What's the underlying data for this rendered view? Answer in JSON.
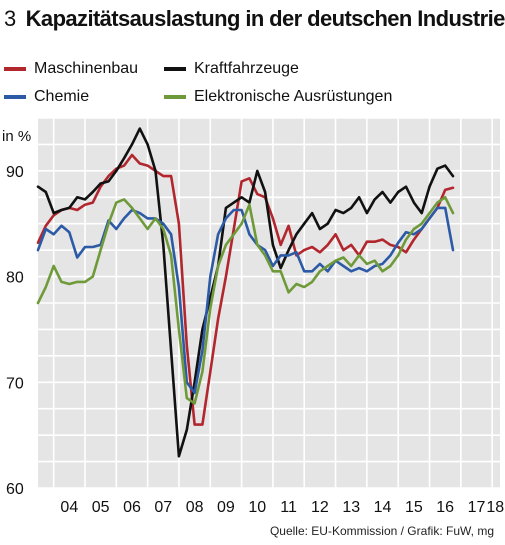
{
  "chart_data": {
    "type": "line",
    "title_number": "3",
    "title": "Kapazitätsauslastung in der deutschen Industrie",
    "ylabel": "in %",
    "ylim": [
      60,
      95
    ],
    "yticks": [
      60,
      70,
      80,
      90
    ],
    "xlim": [
      2003.5,
      2018.25
    ],
    "x_tick_labels": [
      "04",
      "05",
      "06",
      "07",
      "08",
      "09",
      "10",
      "11",
      "12",
      "13",
      "14",
      "15",
      "16",
      "17",
      "18"
    ],
    "grid": true,
    "legend_placement": "top",
    "source": "Quelle: EU-Kommission / Grafik: FuW, mg",
    "x_start_year": 2003.5,
    "x_step": 0.25,
    "series": [
      {
        "name": "Maschinenbau",
        "color": "#b2262e",
        "values": [
          83.2,
          84.8,
          85.8,
          86.3,
          86.5,
          86.3,
          86.8,
          87.0,
          88.5,
          89.5,
          90.2,
          90.5,
          91.5,
          90.7,
          90.5,
          90.0,
          89.5,
          89.5,
          85.0,
          73.5,
          66.0,
          66.0,
          71.0,
          76.0,
          80.0,
          84.5,
          89.0,
          89.3,
          87.8,
          87.5,
          85.5,
          83.0,
          84.8,
          82.0,
          82.5,
          82.8,
          82.3,
          83.0,
          84.0,
          82.5,
          83.0,
          82.0,
          83.3,
          83.3,
          83.5,
          83.0,
          82.8,
          82.3,
          83.5,
          84.5,
          85.5,
          86.5,
          88.2,
          88.4
        ]
      },
      {
        "name": "Kraftfahrzeuge",
        "color": "#111111",
        "values": [
          88.5,
          88.0,
          86.0,
          86.3,
          86.5,
          87.5,
          87.3,
          88.0,
          88.8,
          89.0,
          90.0,
          91.2,
          92.5,
          94.0,
          92.5,
          90.0,
          83.0,
          73.0,
          63.0,
          65.5,
          70.0,
          75.0,
          78.0,
          81.0,
          86.5,
          87.0,
          87.5,
          87.0,
          90.0,
          88.0,
          83.0,
          80.8,
          82.5,
          84.0,
          85.0,
          86.0,
          84.5,
          85.0,
          86.3,
          86.0,
          86.5,
          87.5,
          86.0,
          87.3,
          88.0,
          87.0,
          88.0,
          88.5,
          87.0,
          86.0,
          88.5,
          90.2,
          90.5,
          89.5
        ]
      },
      {
        "name": "Chemie",
        "color": "#2c5aa6",
        "values": [
          82.5,
          84.5,
          84.0,
          84.8,
          84.2,
          81.8,
          82.8,
          82.8,
          83.0,
          85.3,
          84.5,
          85.5,
          86.3,
          86.0,
          85.5,
          85.5,
          85.0,
          84.0,
          79.0,
          70.0,
          69.0,
          73.0,
          80.0,
          84.0,
          85.5,
          86.3,
          86.3,
          84.0,
          83.0,
          82.5,
          81.0,
          82.0,
          82.0,
          82.3,
          80.5,
          80.5,
          81.2,
          80.5,
          81.5,
          81.0,
          80.5,
          80.8,
          80.5,
          81.0,
          81.2,
          82.0,
          83.2,
          84.2,
          84.0,
          84.5,
          85.5,
          86.5,
          86.5,
          82.5
        ]
      },
      {
        "name": "Elektronische Ausrüstungen",
        "color": "#6f9a3a",
        "values": [
          77.5,
          79.0,
          81.0,
          79.5,
          79.3,
          79.5,
          79.5,
          80.0,
          82.5,
          85.0,
          87.0,
          87.3,
          86.5,
          85.5,
          84.5,
          85.5,
          84.5,
          82.0,
          75.0,
          68.5,
          68.0,
          71.0,
          77.0,
          81.0,
          83.0,
          84.0,
          85.0,
          86.8,
          83.0,
          82.0,
          80.5,
          80.5,
          78.5,
          79.3,
          79.0,
          79.5,
          80.5,
          81.0,
          81.5,
          81.8,
          81.0,
          82.0,
          81.2,
          81.5,
          80.5,
          81.0,
          82.0,
          83.5,
          84.5,
          85.0,
          86.0,
          87.0,
          87.5,
          86.0
        ]
      }
    ]
  }
}
